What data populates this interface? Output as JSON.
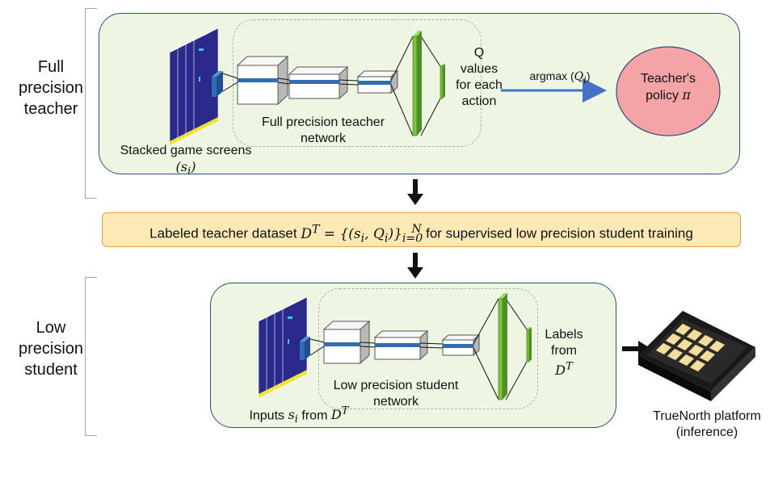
{
  "teacher": {
    "side_label": "Full precision teacher",
    "stacked_label": "Stacked game screens",
    "stacked_math": "(s_i)",
    "network_label": "Full precision teacher network",
    "q_label": "Q values for each action",
    "argmax_label": "argmax (Q_i)",
    "policy_label": "Teacher's policy π"
  },
  "dataset": {
    "prefix": "Labeled teacher dataset",
    "formula": "D^T = {(s_i, Q_i)}^N_{i=0}",
    "suffix": "for supervised low precision student training"
  },
  "student": {
    "side_label": "Low precision student",
    "inputs_label": "Inputs s_i from D^T",
    "network_label": "Low precision student network",
    "labels_label": "Labels from D^T"
  },
  "chip": {
    "caption_line1": "TrueNorth platform",
    "caption_line2": "(inference)"
  },
  "colors": {
    "panel_fill": "#eef5e3",
    "panel_border": "#2f4f7a",
    "dataset_fill": "#fce9b6",
    "policy_fill": "#f4a3a6",
    "dense_green": "#7cc142",
    "game_screen": "#2b2a8c",
    "conv_blue": "#2f6db3"
  }
}
